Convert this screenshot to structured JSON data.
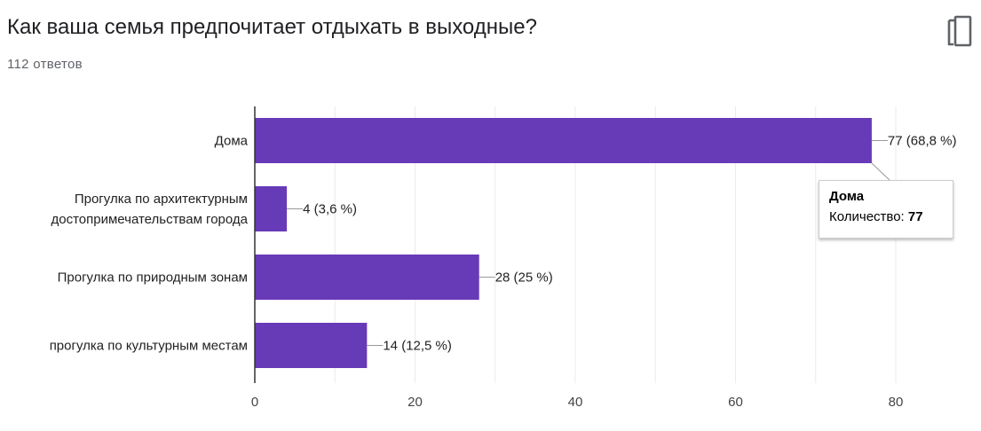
{
  "question": {
    "title": "Как ваша семья предпочитает отдыхать в выходные?",
    "responses": "112 ответов"
  },
  "icons": {
    "copy": "copy-icon"
  },
  "colors": {
    "bar": "#673ab7",
    "grid": "#ebebeb",
    "axis": "#333333",
    "text": "#222222"
  },
  "tooltip": {
    "title": "Дома",
    "label": "Количество:",
    "value": "77"
  },
  "chart_data": {
    "type": "bar",
    "orientation": "horizontal",
    "categories": [
      [
        "Дома"
      ],
      [
        "Прогулка по архитектурным",
        "достопримечательствам города"
      ],
      [
        "Прогулка по природным зонам"
      ],
      [
        "прогулка по культурным местам"
      ]
    ],
    "values": [
      77,
      4,
      28,
      14
    ],
    "data_labels": [
      "77 (68,8 %)",
      "4 (3,6 %)",
      "28 (25 %)",
      "14 (12,5 %)"
    ],
    "xlim": [
      0,
      80
    ],
    "xticks": [
      0,
      20,
      40,
      60,
      80
    ],
    "grid": true
  }
}
